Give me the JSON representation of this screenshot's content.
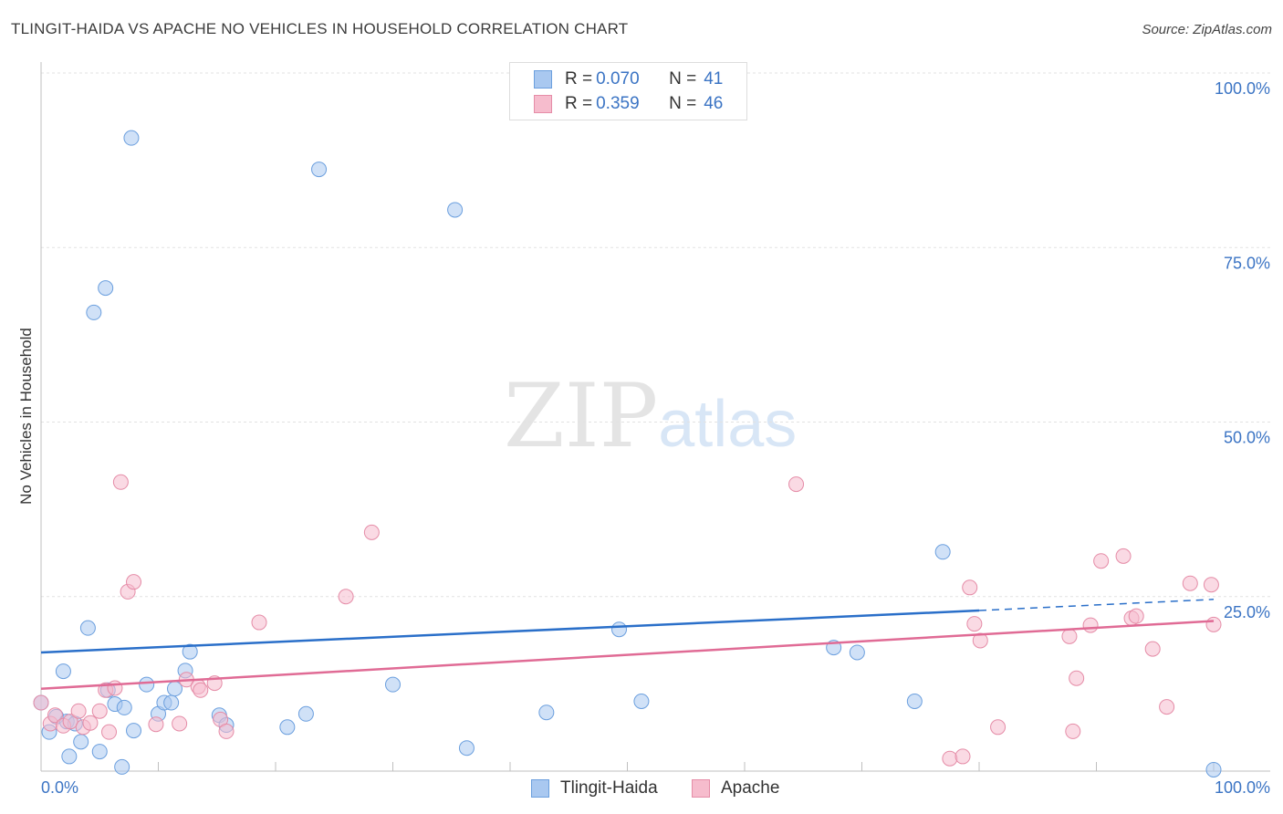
{
  "header": {
    "title": "TLINGIT-HAIDA VS APACHE NO VEHICLES IN HOUSEHOLD CORRELATION CHART",
    "source": "Source: ZipAtlas.com"
  },
  "watermark": {
    "zip": "ZIP",
    "atlas": "atlas"
  },
  "legend": {
    "rows": [
      {
        "r_label": "R = ",
        "r_value": "0.070",
        "n_label": "N = ",
        "n_value": "41",
        "color": "#a9c8f0",
        "border": "#6b9fde"
      },
      {
        "r_label": "R = ",
        "r_value": "0.359",
        "n_label": "N = ",
        "n_value": "46",
        "color": "#f6bccd",
        "border": "#e58ca7"
      }
    ]
  },
  "bottom_legend": [
    {
      "label": "Tlingit-Haida",
      "color": "#a9c8f0",
      "border": "#6b9fde"
    },
    {
      "label": "Apache",
      "color": "#f6bccd",
      "border": "#e58ca7"
    }
  ],
  "chart_data": {
    "type": "scatter",
    "title": "TLINGIT-HAIDA VS APACHE NO VEHICLES IN HOUSEHOLD CORRELATION CHART",
    "xlabel": "",
    "ylabel": "No Vehicles in Household",
    "xlim": [
      0,
      100
    ],
    "ylim": [
      0,
      100
    ],
    "x_tick_labels": [
      "0.0%",
      "100.0%"
    ],
    "y_ticks": [
      25,
      50,
      75,
      100
    ],
    "y_tick_labels": [
      "25.0%",
      "50.0%",
      "75.0%",
      "100.0%"
    ],
    "grid": true,
    "series": [
      {
        "name": "Tlingit-Haida",
        "color": "#a9c8f0",
        "edge": "#6b9fde",
        "line_color": "#2a6fc9",
        "trend": {
          "x0": 0,
          "y0": 17.0,
          "x1": 80,
          "y1": 23.0,
          "dash_x1": 100,
          "dash_y1": 24.6
        },
        "points": [
          [
            0,
            9.8
          ],
          [
            0.7,
            5.6
          ],
          [
            1.3,
            7.8
          ],
          [
            1.9,
            14.3
          ],
          [
            2.2,
            7.1
          ],
          [
            2.4,
            2.1
          ],
          [
            2.9,
            6.8
          ],
          [
            3.4,
            4.2
          ],
          [
            4.0,
            20.5
          ],
          [
            4.5,
            65.7
          ],
          [
            5.0,
            2.8
          ],
          [
            5.5,
            69.2
          ],
          [
            5.7,
            11.6
          ],
          [
            6.3,
            9.6
          ],
          [
            6.9,
            0.6
          ],
          [
            7.1,
            9.1
          ],
          [
            7.7,
            90.7
          ],
          [
            7.9,
            5.8
          ],
          [
            9.0,
            12.4
          ],
          [
            10.0,
            8.2
          ],
          [
            10.5,
            9.8
          ],
          [
            11.1,
            9.8
          ],
          [
            11.4,
            11.8
          ],
          [
            12.3,
            14.4
          ],
          [
            12.7,
            17.1
          ],
          [
            15.2,
            8.0
          ],
          [
            15.8,
            6.6
          ],
          [
            21.0,
            6.3
          ],
          [
            22.6,
            8.2
          ],
          [
            23.7,
            86.2
          ],
          [
            30.0,
            12.4
          ],
          [
            35.3,
            80.4
          ],
          [
            36.3,
            3.3
          ],
          [
            43.1,
            8.4
          ],
          [
            49.3,
            20.3
          ],
          [
            51.2,
            10.0
          ],
          [
            67.6,
            17.7
          ],
          [
            69.6,
            17.0
          ],
          [
            74.5,
            10.0
          ],
          [
            76.9,
            31.4
          ],
          [
            100,
            0.2
          ]
        ]
      },
      {
        "name": "Apache",
        "color": "#f6bccd",
        "edge": "#e58ca7",
        "line_color": "#e06b95",
        "trend": {
          "x0": 0,
          "y0": 11.8,
          "x1": 100,
          "y1": 21.5
        },
        "points": [
          [
            0,
            9.8
          ],
          [
            0.8,
            6.8
          ],
          [
            1.2,
            8.0
          ],
          [
            1.9,
            6.5
          ],
          [
            2.5,
            7.1
          ],
          [
            3.2,
            8.6
          ],
          [
            3.6,
            6.3
          ],
          [
            4.2,
            6.9
          ],
          [
            5.0,
            8.6
          ],
          [
            5.5,
            11.6
          ],
          [
            5.8,
            5.6
          ],
          [
            6.3,
            11.9
          ],
          [
            6.8,
            41.4
          ],
          [
            7.4,
            25.7
          ],
          [
            7.9,
            27.1
          ],
          [
            9.8,
            6.7
          ],
          [
            11.8,
            6.8
          ],
          [
            12.4,
            13.1
          ],
          [
            13.4,
            12.1
          ],
          [
            13.6,
            11.6
          ],
          [
            14.8,
            12.6
          ],
          [
            15.3,
            7.4
          ],
          [
            15.8,
            5.7
          ],
          [
            18.6,
            21.3
          ],
          [
            26.0,
            25.0
          ],
          [
            28.2,
            34.2
          ],
          [
            64.4,
            41.1
          ],
          [
            77.5,
            1.8
          ],
          [
            78.6,
            2.1
          ],
          [
            79.2,
            26.3
          ],
          [
            79.6,
            21.1
          ],
          [
            80.1,
            18.7
          ],
          [
            81.6,
            6.3
          ],
          [
            87.7,
            19.3
          ],
          [
            88.0,
            5.7
          ],
          [
            88.3,
            13.3
          ],
          [
            89.5,
            20.9
          ],
          [
            90.4,
            30.1
          ],
          [
            92.3,
            30.8
          ],
          [
            93.0,
            21.9
          ],
          [
            93.4,
            22.2
          ],
          [
            94.8,
            17.5
          ],
          [
            96.0,
            9.2
          ],
          [
            98.0,
            26.9
          ],
          [
            99.8,
            26.7
          ],
          [
            100,
            21.0
          ]
        ]
      }
    ]
  }
}
